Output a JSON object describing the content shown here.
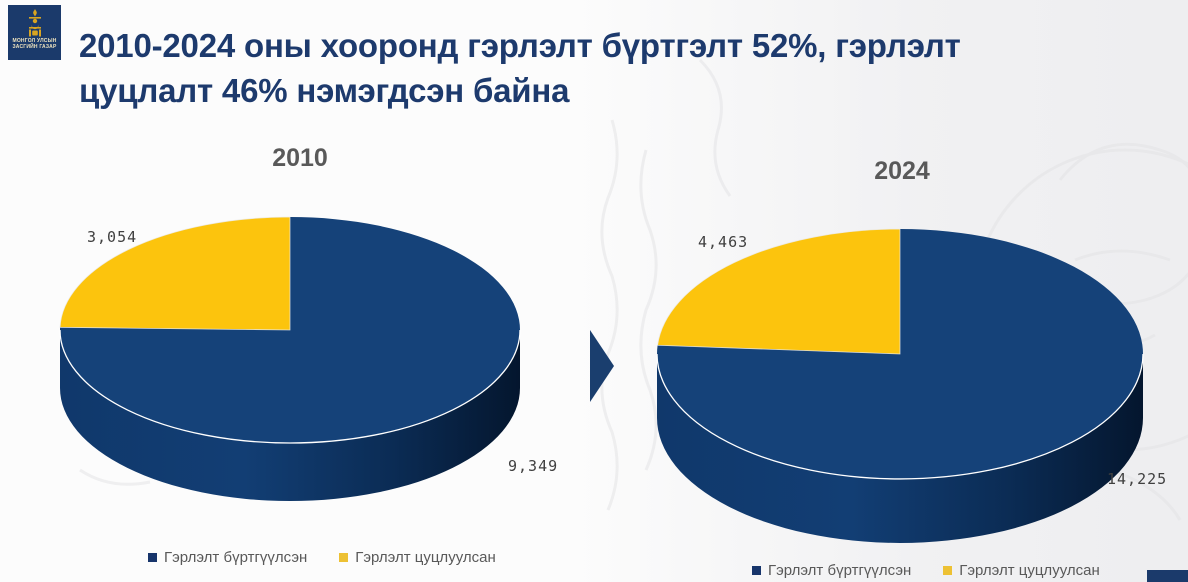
{
  "logo": {
    "org_line1": "МОНГОЛ УЛСЫН",
    "org_line2": "ЗАСГИЙН ГАЗАР",
    "bg_color": "#1B3A6B",
    "symbol": "soyombo",
    "symbol_color": "#D9A521"
  },
  "title": {
    "lines": [
      "2010-2024 оны хооронд гэрлэлт бүртгэлт 52%, гэрлэлт",
      "цуцлалт 46% нэмэгдсэн байна"
    ],
    "color": "#1D3A6D"
  },
  "chart_data": [
    {
      "type": "pie",
      "style": "3d",
      "title": "2010",
      "categories": [
        "Гэрлэлт бүртгүүлсэн",
        "Гэрлэлт цуцлуулсан"
      ],
      "values": [
        9349,
        3054
      ],
      "data_labels": [
        "9,349",
        "3,054"
      ],
      "colors": [
        "#154279",
        "#FCC40D"
      ],
      "start_angle_deg": 0,
      "direction": "clockwise",
      "legend_position": "bottom",
      "legend": [
        "Гэрлэлт бүртгүүлсэн",
        "Гэрлэлт цуцлуулсан"
      ]
    },
    {
      "type": "pie",
      "style": "3d",
      "title": "2024",
      "categories": [
        "Гэрлэлт бүртгүүлсэн",
        "Гэрлэлт цуцлуулсан"
      ],
      "values": [
        14225,
        4463
      ],
      "data_labels": [
        "14,225",
        "4,463"
      ],
      "colors": [
        "#154279",
        "#FCC40D"
      ],
      "start_angle_deg": 0,
      "direction": "clockwise",
      "legend_position": "bottom",
      "legend": [
        "Гэрлэлт бүртгүүлсэн",
        "Гэрлэлт цуцлуулсан"
      ]
    }
  ],
  "colors": {
    "pie_blue": "#154279",
    "pie_yellow": "#FCC40D",
    "pie_side_dark": "#0A2748",
    "title_navy": "#1D3A6D",
    "chart_title_gray": "#595959",
    "data_label_gray": "#404040",
    "legend_gray": "#595959",
    "arrow_navy": "#1A3E6E",
    "legend_marker_blue": "#17356B",
    "legend_marker_yellow": "#EDC134"
  }
}
